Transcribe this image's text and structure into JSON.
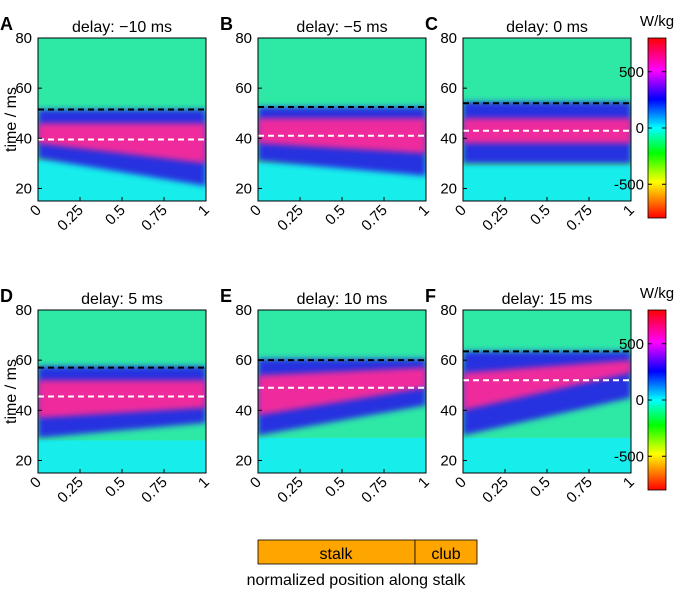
{
  "chart_data": {
    "type": "heatmap",
    "ylabel": "time / ms",
    "xlabel": "normalized position along stalk",
    "xlim": [
      0,
      1
    ],
    "ylim": [
      15,
      80
    ],
    "x_ticks": [
      0,
      0.25,
      0.5,
      0.75,
      1
    ],
    "x_tick_labels": [
      "0",
      "0.25",
      "0.5",
      "0.75",
      "1"
    ],
    "y_ticks": [
      20,
      40,
      60,
      80
    ],
    "y_tick_labels": [
      "20",
      "40",
      "60",
      "80"
    ],
    "colorbar": {
      "unit": "W/kg",
      "range": [
        -800,
        800
      ],
      "ticks": [
        500,
        0,
        -500
      ],
      "tick_labels": [
        "500",
        "0",
        "-500"
      ],
      "colors": [
        "#ff0000",
        "#ffff00",
        "#00ff00",
        "#00ffff",
        "#0000ff",
        "#ff00ff",
        "#ff0000"
      ]
    },
    "colors": {
      "background_field": "#2ee8a6",
      "lower_field": "#17eeeb",
      "positive_band": "#ee2a9d",
      "negative_band": "#2733e0",
      "black_line": "#000000",
      "white_line": "#ffffff"
    },
    "panels": [
      {
        "letter": "A",
        "title": "delay: −10 ms",
        "black_dashed_time": 51.5,
        "white_dashed_time": 39.5,
        "band_top": [
          50,
          50
        ],
        "band_bottom": [
          35,
          24
        ],
        "peak_top": [
          46,
          46
        ],
        "peak_bottom": [
          38,
          30
        ]
      },
      {
        "letter": "B",
        "title": "delay: −5 ms",
        "black_dashed_time": 52.5,
        "white_dashed_time": 41,
        "band_top": [
          51,
          51
        ],
        "band_bottom": [
          34,
          28
        ],
        "peak_top": [
          48,
          48
        ],
        "peak_bottom": [
          38,
          34
        ]
      },
      {
        "letter": "C",
        "title": "delay: 0 ms",
        "black_dashed_time": 54,
        "white_dashed_time": 43,
        "band_top": [
          53,
          53
        ],
        "band_bottom": [
          33,
          33
        ],
        "peak_top": [
          48,
          48
        ],
        "peak_bottom": [
          38,
          38
        ]
      },
      {
        "letter": "D",
        "title": "delay: 5 ms",
        "black_dashed_time": 57,
        "white_dashed_time": 45.5,
        "band_top": [
          56,
          56
        ],
        "band_bottom": [
          32,
          38
        ],
        "peak_top": [
          52,
          52
        ],
        "peak_bottom": [
          37,
          41
        ]
      },
      {
        "letter": "E",
        "title": "delay: 10 ms",
        "black_dashed_time": 60,
        "white_dashed_time": 49,
        "band_top": [
          59,
          59
        ],
        "band_bottom": [
          33,
          45
        ],
        "peak_top": [
          54,
          57
        ],
        "peak_bottom": [
          38,
          49
        ]
      },
      {
        "letter": "F",
        "title": "delay: 15 ms",
        "black_dashed_time": 63.5,
        "white_dashed_time": 52,
        "band_top": [
          62,
          62
        ],
        "band_bottom": [
          33,
          48
        ],
        "peak_top": [
          55,
          60
        ],
        "peak_bottom": [
          40,
          55
        ]
      }
    ],
    "legend_bar": {
      "segments": [
        {
          "label": "stalk",
          "from": 0,
          "to": 1,
          "color": "#ffa500"
        },
        {
          "label": "club",
          "from": 1,
          "to": 1.4,
          "color": "#ffa500"
        }
      ]
    }
  }
}
